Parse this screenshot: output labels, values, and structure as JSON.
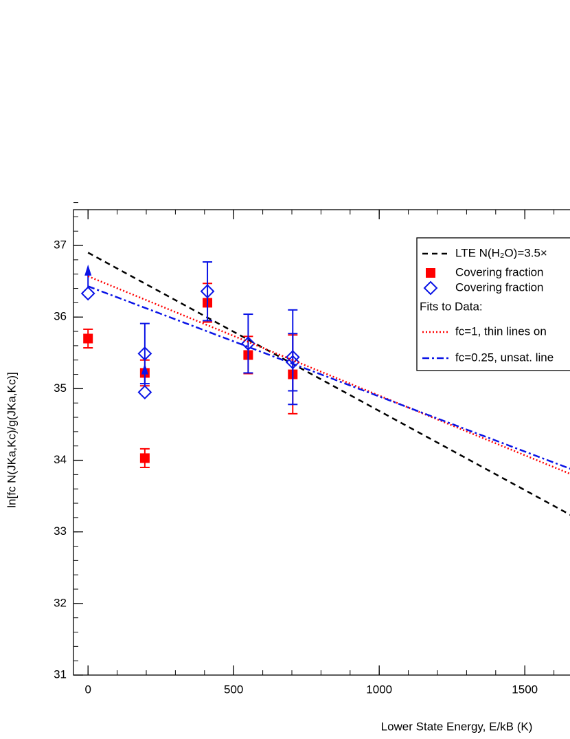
{
  "chart_data": {
    "type": "scatter",
    "x_label": "Lower State Energy, E/kB (K)",
    "y_label": "ln[fc N(JKa,Kc)/g(JKa,Kc)]",
    "xlim": [
      -50,
      1800
    ],
    "ylim": [
      31,
      37.5
    ],
    "xticks": [
      0,
      500,
      1000,
      1500
    ],
    "yticks": [
      31,
      32,
      33,
      34,
      35,
      36,
      37
    ],
    "x_minor_step": 100,
    "y_minor_step": 0.2,
    "legend_position": "upper right",
    "legend_heading": "Fits to Data:",
    "series": [
      {
        "name": "LTE N(H₂O)=3.5×",
        "kind": "line",
        "style": "dashed",
        "color": "#000000",
        "x": [
          0,
          1800
        ],
        "values": [
          36.9,
          32.92
        ]
      },
      {
        "name": "Covering fraction",
        "kind": "points",
        "marker": "square",
        "color": "#ff0000",
        "x": [
          0,
          195,
          195,
          410,
          550,
          703
        ],
        "values": [
          35.7,
          35.22,
          34.03,
          36.2,
          35.47,
          35.2
        ],
        "errors": [
          0.13,
          0.18,
          0.13,
          0.27,
          0.26,
          0.55
        ]
      },
      {
        "name": "Covering fraction",
        "kind": "points",
        "marker": "diamond",
        "color": "#0a14e6",
        "x": [
          0,
          195,
          195,
          410,
          550,
          703,
          703
        ],
        "values": [
          36.33,
          35.49,
          34.95,
          36.36,
          35.63,
          35.44,
          35.37
        ],
        "errors": [
          null,
          0.42,
          null,
          0.41,
          0.41,
          0.66,
          0.4
        ],
        "lower_limit": [
          true,
          false,
          true,
          false,
          false,
          false,
          false
        ]
      },
      {
        "name": "fc=1, thin lines on",
        "kind": "line",
        "style": "dotted",
        "color": "#ff0000",
        "x": [
          0,
          1800
        ],
        "values": [
          36.57,
          33.57
        ]
      },
      {
        "name": "fc=0.25, unsat. line",
        "kind": "line",
        "style": "dashdot",
        "color": "#0a14e6",
        "x": [
          0,
          1800
        ],
        "values": [
          36.43,
          33.66
        ]
      }
    ]
  }
}
